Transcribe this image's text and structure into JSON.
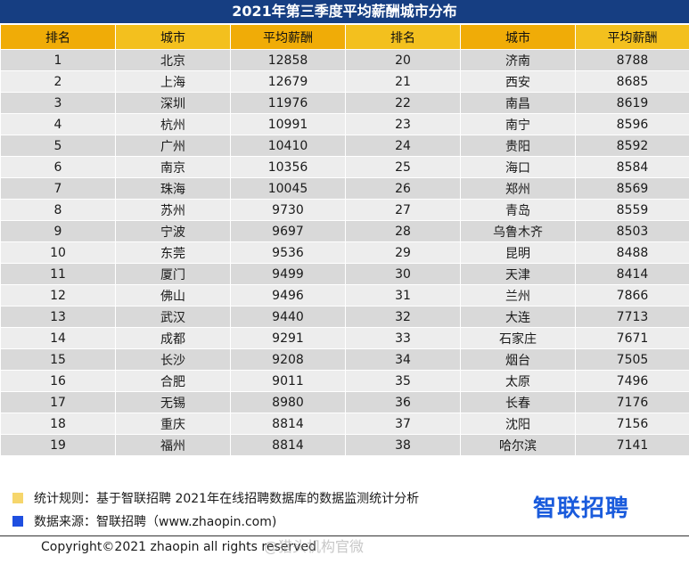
{
  "title": "2021年第三季度平均薪酬城市分布",
  "chart_data": {
    "type": "table",
    "title": "2021年第三季度平均薪酬城市分布",
    "columns": [
      "排名",
      "城市",
      "平均薪酬",
      "排名",
      "城市",
      "平均薪酬"
    ],
    "rows": [
      {
        "left": {
          "rank": "1",
          "city": "北京",
          "salary": "12858"
        },
        "right": {
          "rank": "20",
          "city": "济南",
          "salary": "8788"
        }
      },
      {
        "left": {
          "rank": "2",
          "city": "上海",
          "salary": "12679"
        },
        "right": {
          "rank": "21",
          "city": "西安",
          "salary": "8685"
        }
      },
      {
        "left": {
          "rank": "3",
          "city": "深圳",
          "salary": "11976"
        },
        "right": {
          "rank": "22",
          "city": "南昌",
          "salary": "8619"
        }
      },
      {
        "left": {
          "rank": "4",
          "city": "杭州",
          "salary": "10991"
        },
        "right": {
          "rank": "23",
          "city": "南宁",
          "salary": "8596"
        }
      },
      {
        "left": {
          "rank": "5",
          "city": "广州",
          "salary": "10410"
        },
        "right": {
          "rank": "24",
          "city": "贵阳",
          "salary": "8592"
        }
      },
      {
        "left": {
          "rank": "6",
          "city": "南京",
          "salary": "10356"
        },
        "right": {
          "rank": "25",
          "city": "海口",
          "salary": "8584"
        }
      },
      {
        "left": {
          "rank": "7",
          "city": "珠海",
          "salary": "10045"
        },
        "right": {
          "rank": "26",
          "city": "郑州",
          "salary": "8569"
        }
      },
      {
        "left": {
          "rank": "8",
          "city": "苏州",
          "salary": "9730"
        },
        "right": {
          "rank": "27",
          "city": "青岛",
          "salary": "8559"
        }
      },
      {
        "left": {
          "rank": "9",
          "city": "宁波",
          "salary": "9697"
        },
        "right": {
          "rank": "28",
          "city": "乌鲁木齐",
          "salary": "8503"
        }
      },
      {
        "left": {
          "rank": "10",
          "city": "东莞",
          "salary": "9536"
        },
        "right": {
          "rank": "29",
          "city": "昆明",
          "salary": "8488"
        }
      },
      {
        "left": {
          "rank": "11",
          "city": "厦门",
          "salary": "9499"
        },
        "right": {
          "rank": "30",
          "city": "天津",
          "salary": "8414"
        }
      },
      {
        "left": {
          "rank": "12",
          "city": "佛山",
          "salary": "9496"
        },
        "right": {
          "rank": "31",
          "city": "兰州",
          "salary": "7866"
        }
      },
      {
        "left": {
          "rank": "13",
          "city": "武汉",
          "salary": "9440"
        },
        "right": {
          "rank": "32",
          "city": "大连",
          "salary": "7713"
        }
      },
      {
        "left": {
          "rank": "14",
          "city": "成都",
          "salary": "9291"
        },
        "right": {
          "rank": "33",
          "city": "石家庄",
          "salary": "7671"
        }
      },
      {
        "left": {
          "rank": "15",
          "city": "长沙",
          "salary": "9208"
        },
        "right": {
          "rank": "34",
          "city": "烟台",
          "salary": "7505"
        }
      },
      {
        "left": {
          "rank": "16",
          "city": "合肥",
          "salary": "9011"
        },
        "right": {
          "rank": "35",
          "city": "太原",
          "salary": "7496"
        }
      },
      {
        "left": {
          "rank": "17",
          "city": "无锡",
          "salary": "8980"
        },
        "right": {
          "rank": "36",
          "city": "长春",
          "salary": "7176"
        }
      },
      {
        "left": {
          "rank": "18",
          "city": "重庆",
          "salary": "8814"
        },
        "right": {
          "rank": "37",
          "city": "沈阳",
          "salary": "7156"
        }
      },
      {
        "left": {
          "rank": "19",
          "city": "福州",
          "salary": "8814"
        },
        "right": {
          "rank": "38",
          "city": "哈尔滨",
          "salary": "7141"
        }
      }
    ]
  },
  "notes": {
    "rule_text": "统计规则：基于智联招聘  2021年在线招聘数据库的数据监测统计分析",
    "source_text": "数据来源：智联招聘（www.zhaopin.com)"
  },
  "logo_text": "智联招聘",
  "copyright": "Copyright©2021 zhaopin all rights reserved",
  "watermark": "@猎头机构官微",
  "colors": {
    "title_bg": "#163e82",
    "header_bg": "#f3c01e",
    "header_bg_alt": "#f0ac07",
    "row_odd": "#d9d9d9",
    "row_even": "#ededed",
    "legend_yellow": "#f6d66c",
    "legend_blue": "#1f4fe0",
    "logo_blue": "#1a5bdc"
  }
}
